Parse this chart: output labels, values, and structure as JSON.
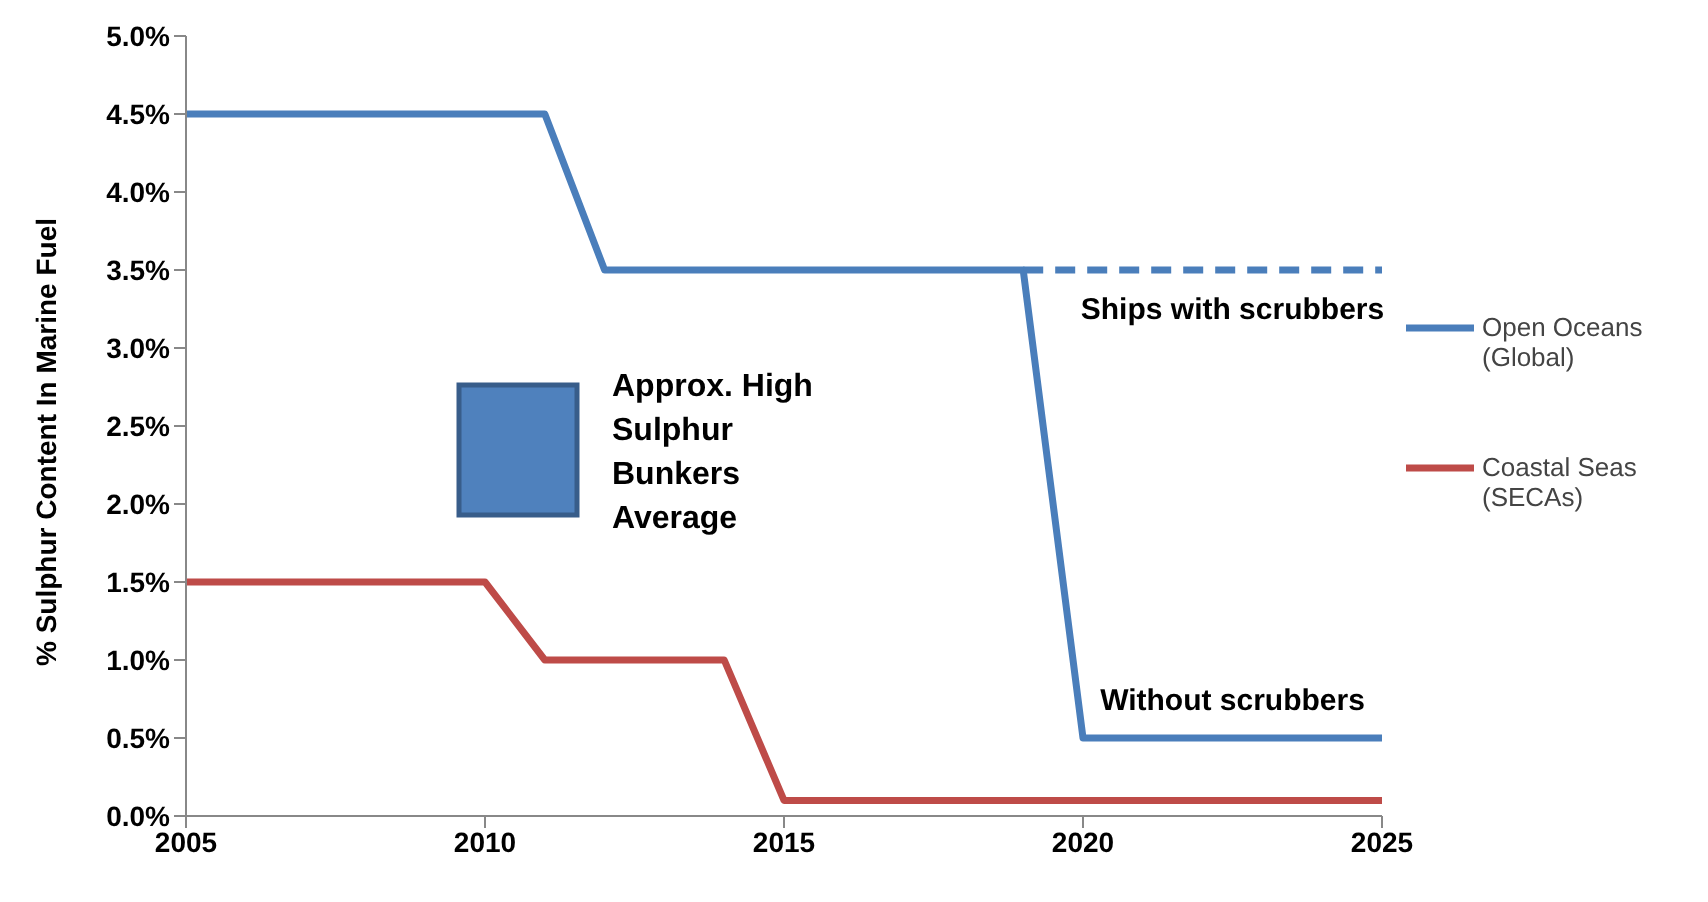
{
  "chart_data": {
    "type": "line",
    "ylabel": "% Sulphur Content In Marine Fuel",
    "xlim": [
      2005,
      2025
    ],
    "xticks": [
      2005,
      2010,
      2015,
      2020,
      2025
    ],
    "ylim": [
      0,
      5
    ],
    "yticks": [
      {
        "value": 0,
        "label": "0.0%"
      },
      {
        "value": 0.5,
        "label": "0.5%"
      },
      {
        "value": 1,
        "label": "1.0%"
      },
      {
        "value": 1.5,
        "label": "1.5%"
      },
      {
        "value": 2,
        "label": "2.0%"
      },
      {
        "value": 2.5,
        "label": "2.5%"
      },
      {
        "value": 3,
        "label": "3.0%"
      },
      {
        "value": 3.5,
        "label": "3.5%"
      },
      {
        "value": 4,
        "label": "4.0%"
      },
      {
        "value": 4.5,
        "label": "4.5%"
      },
      {
        "value": 5,
        "label": "5.0%"
      }
    ],
    "grid": false,
    "legend": "right",
    "marker": "none",
    "series": [
      {
        "name": "Open Oceans (Global)",
        "color": "#4a7ebb",
        "x": [
          2005,
          2011,
          2012,
          2019,
          2020,
          2025
        ],
        "values": [
          4.5,
          4.5,
          3.5,
          3.5,
          0.5,
          0.5
        ]
      },
      {
        "color": "#4a7ebb",
        "line_style": "dashed",
        "x": [
          2019,
          2025
        ],
        "values": [
          3.5,
          3.5
        ]
      },
      {
        "name": "Coastal Seas (SECAs)",
        "color": "#be4b48",
        "x": [
          2005,
          2010,
          2011,
          2014,
          2015,
          2025
        ],
        "values": [
          1.5,
          1.5,
          1,
          1,
          0.1,
          0.1
        ]
      }
    ],
    "annotations": [
      "Approx. High Sulphur Bunkers Average",
      {
        "text": "Ships with scrubbers",
        "x": 2022.5,
        "y": 3.5
      },
      {
        "text": "Without scrubbers",
        "x": 2022.5,
        "y": 0.5
      }
    ]
  }
}
